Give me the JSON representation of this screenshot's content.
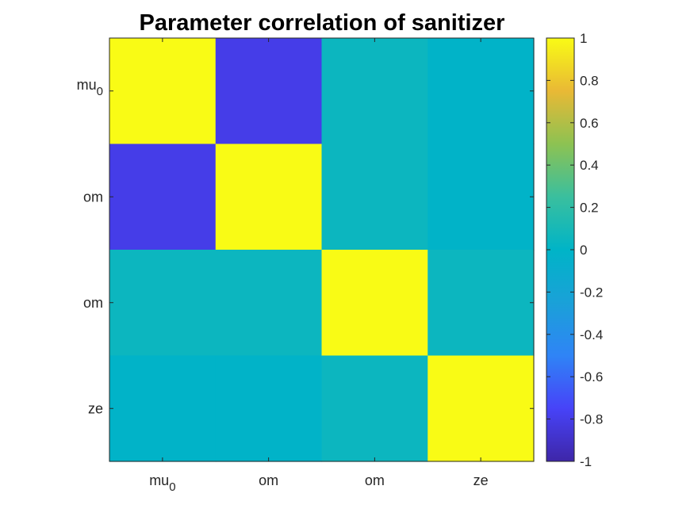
{
  "chart_data": {
    "type": "heatmap",
    "title": "Parameter correlation of sanitizer",
    "x_labels": [
      {
        "base": "mu",
        "sub": "0"
      },
      {
        "base": "om",
        "sub": ""
      },
      {
        "base": "om",
        "sub": ""
      },
      {
        "base": "ze",
        "sub": ""
      }
    ],
    "y_labels": [
      {
        "base": "mu",
        "sub": "0"
      },
      {
        "base": "om",
        "sub": ""
      },
      {
        "base": "om",
        "sub": ""
      },
      {
        "base": "ze",
        "sub": ""
      }
    ],
    "values": [
      [
        1.0,
        -0.8,
        0.05,
        -0.01
      ],
      [
        -0.8,
        1.0,
        0.05,
        -0.01
      ],
      [
        0.05,
        0.05,
        1.0,
        0.05
      ],
      [
        -0.01,
        -0.01,
        0.05,
        1.0
      ]
    ],
    "colorbar": {
      "min": -1,
      "max": 1,
      "ticks": [
        "-1",
        "-0.8",
        "-0.6",
        "-0.4",
        "-0.2",
        "0",
        "0.2",
        "0.4",
        "0.6",
        "0.8",
        "1"
      ]
    },
    "colormap": "parula"
  }
}
